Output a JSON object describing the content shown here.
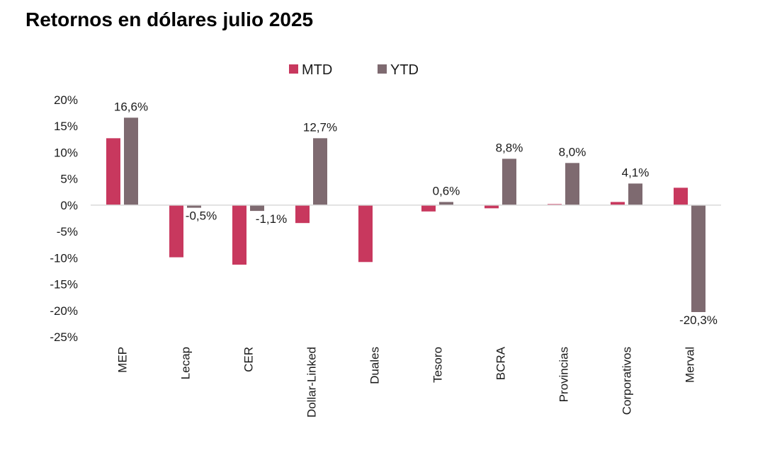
{
  "chart_data": {
    "type": "bar",
    "title": "Retornos en dólares julio 2025",
    "xlabel": "",
    "ylabel": "",
    "categories": [
      "MEP",
      "Lecap",
      "CER",
      "Dollar-Linked",
      "Duales",
      "Tesoro",
      "BCRA",
      "Provincias",
      "Corporativos",
      "Merval"
    ],
    "series": [
      {
        "name": "MTD",
        "color": "#c8385e",
        "values": [
          12.7,
          -9.9,
          -11.3,
          -3.4,
          -10.8,
          -1.2,
          -0.6,
          0.2,
          0.6,
          3.3
        ]
      },
      {
        "name": "YTD",
        "color": "#7e6a70",
        "values": [
          16.6,
          -0.5,
          -1.1,
          12.7,
          null,
          0.6,
          8.8,
          8.0,
          4.1,
          -20.3
        ]
      }
    ],
    "data_labels": {
      "series": "YTD",
      "labels": [
        "16,6%",
        "-0,5%",
        "-1,1%",
        "12,7%",
        "",
        "0,6%",
        "8,8%",
        "8,0%",
        "4,1%",
        "-20,3%"
      ]
    },
    "ylim": [
      -25,
      20
    ],
    "yticks": [
      20,
      15,
      10,
      5,
      0,
      -5,
      -10,
      -15,
      -20,
      -25
    ],
    "ytick_labels": [
      "20%",
      "15%",
      "10%",
      "5%",
      "0%",
      "-5%",
      "-10%",
      "-15%",
      "-20%",
      "-25%"
    ],
    "grid": false,
    "legend": "top-center",
    "zero_line_color": "#d9d9d9"
  }
}
